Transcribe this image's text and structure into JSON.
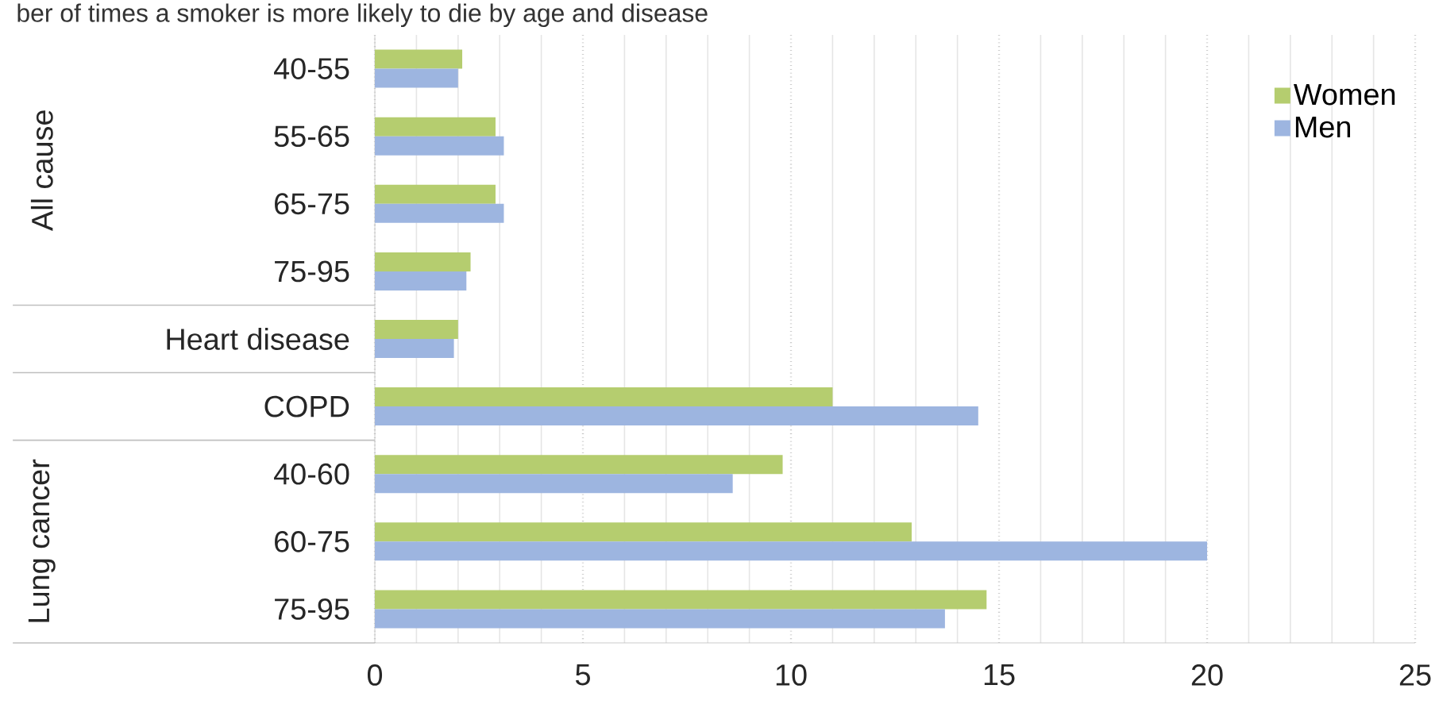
{
  "chart_data": {
    "type": "bar",
    "orientation": "horizontal",
    "title": "ber of times a smoker is more likely to die by age and disease",
    "categories": [
      "40-55",
      "55-65",
      "65-75",
      "75-95",
      "Heart disease",
      "COPD",
      "40-60",
      "60-75",
      "75-95"
    ],
    "series": [
      {
        "name": "Women",
        "color": "#b5cd6f",
        "values": [
          2.1,
          2.9,
          2.9,
          2.3,
          2.0,
          11.0,
          9.8,
          12.9,
          14.7
        ]
      },
      {
        "name": "Men",
        "color": "#9db5e0",
        "values": [
          2.0,
          3.1,
          3.1,
          2.2,
          1.9,
          14.5,
          8.6,
          20.0,
          13.7
        ]
      }
    ],
    "annotations": [
      "All cause",
      "Lung cancer"
    ],
    "xlim": [
      0,
      25
    ],
    "xticks": [
      0,
      5,
      10,
      15,
      20,
      25
    ],
    "grid": "x",
    "legend": "top right"
  }
}
